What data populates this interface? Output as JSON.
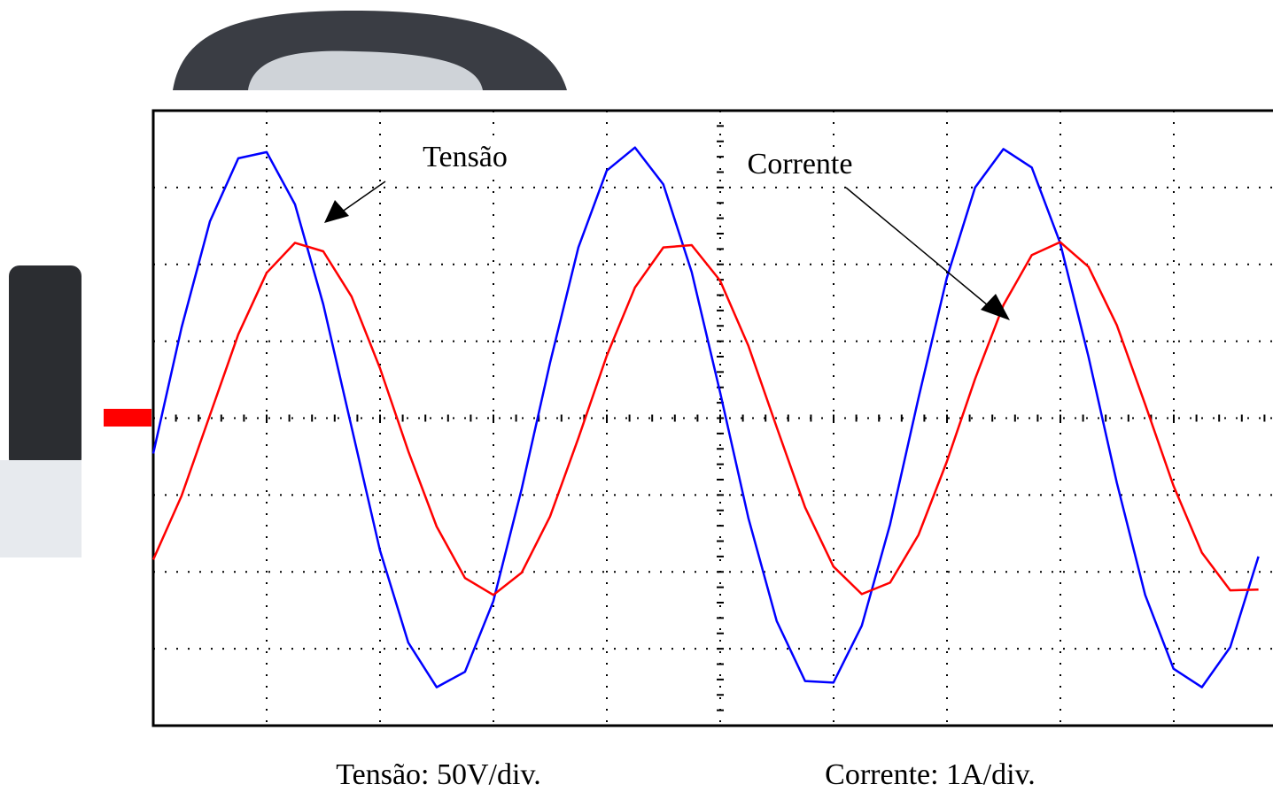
{
  "chart_data": {
    "type": "line",
    "x": [
      0,
      0.25,
      0.5,
      0.75,
      1,
      1.25,
      1.5,
      1.75,
      2,
      2.25,
      2.5,
      2.75,
      3,
      3.25,
      3.5,
      3.75,
      4,
      4.25,
      4.5,
      4.75,
      5,
      5.25,
      5.5,
      5.75,
      6,
      6.25,
      6.5,
      6.75,
      7,
      7.25,
      7.5,
      7.75,
      8,
      8.25,
      8.5,
      8.75,
      9,
      9.25,
      9.5,
      9.75
    ],
    "xlim": [
      0,
      9.87
    ],
    "ylim": [
      -200,
      200
    ],
    "y2lim": [
      -4,
      4
    ],
    "grid": true,
    "series": [
      {
        "name": "Tensão",
        "color": "#0000ff",
        "values": [
          -23,
          59,
          128,
          169,
          173,
          139,
          74,
          -6,
          -86,
          -146,
          -175,
          -165,
          -119,
          -46,
          36,
          111,
          161,
          176,
          152,
          95,
          17,
          -65,
          -132,
          -171,
          -172,
          -135,
          -69,
          13,
          91,
          150,
          175,
          163,
          114,
          40,
          -42,
          -115,
          -163,
          -175,
          -149,
          -90
        ]
      },
      {
        "name": "Corrente",
        "color": "#ff0000",
        "axis": "y2",
        "values": [
          -1.84,
          -1.01,
          0.04,
          1.09,
          1.89,
          2.28,
          2.17,
          1.58,
          0.65,
          -0.43,
          -1.41,
          -2.08,
          -2.3,
          -2.01,
          -1.28,
          -0.26,
          0.81,
          1.7,
          2.22,
          2.25,
          1.79,
          0.94,
          -0.12,
          -1.16,
          -1.93,
          -2.29,
          -2.14,
          -1.52,
          -0.57,
          0.51,
          1.47,
          2.12,
          2.29,
          1.97,
          1.21,
          0.18,
          -0.88,
          -1.75,
          -2.24,
          -2.23
        ]
      }
    ],
    "annotations": [
      "Tensão: 50V/div.",
      "Corrente: 1A/div."
    ]
  }
}
